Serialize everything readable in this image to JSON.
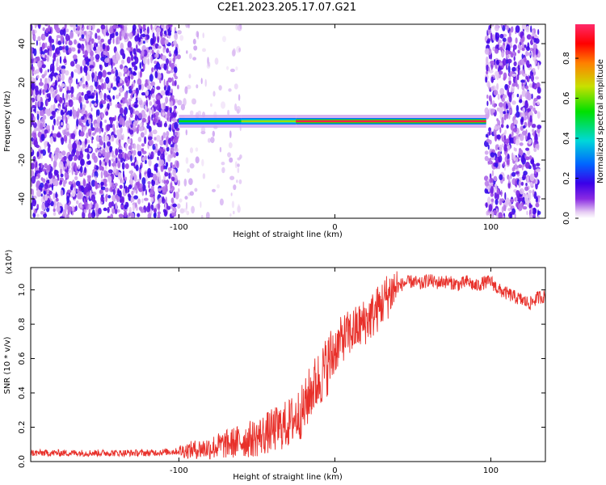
{
  "chart_data": [
    {
      "type": "heatmap",
      "title": "C2E1.2023.205.17.07.G21",
      "xlabel": "Height of straight line (km)",
      "ylabel": "Frequency (Hz)",
      "xlim": [
        -195,
        135
      ],
      "ylim": [
        -50,
        50
      ],
      "x_ticks": [
        -100,
        0,
        100
      ],
      "x_tick_labels": [
        "-100",
        "0",
        "100"
      ],
      "y_ticks": [
        -40,
        -20,
        0,
        20,
        40
      ],
      "y_tick_labels": [
        "-40",
        "-20",
        "0",
        "20",
        "40"
      ],
      "colorbar": {
        "label": "Normalized spectral amplitude",
        "range": [
          0,
          0.97
        ],
        "ticks": [
          0.0,
          0.2,
          0.4,
          0.6,
          0.8
        ],
        "tick_labels": [
          "0.0",
          "0.2",
          "0.4",
          "0.6",
          "0.8"
        ],
        "colors": [
          "#ffffff",
          "#e8d0f4",
          "#8a2be2",
          "#3a00e8",
          "#0066ff",
          "#00d8d8",
          "#00e000",
          "#c8e000",
          "#ff8000",
          "#ff0000",
          "#ff2a6a"
        ]
      },
      "noise_regions": [
        {
          "x_from": -195,
          "x_to": -100,
          "level": "dense"
        },
        {
          "x_from": -100,
          "x_to": -60,
          "level": "sparse"
        },
        {
          "x_from": 97,
          "x_to": 131,
          "level": "dense"
        }
      ],
      "signal_band": {
        "center_frequency_hz": 0,
        "segments": [
          {
            "x_from": -100,
            "x_to": -60,
            "peak": 0.55
          },
          {
            "x_from": -60,
            "x_to": -25,
            "peak": 0.65
          },
          {
            "x_from": -25,
            "x_to": 97,
            "peak": 0.97
          }
        ]
      },
      "grid": false
    },
    {
      "type": "line",
      "xlabel": "Height of straight line (km)",
      "ylabel": "SNR (10 * v/v)",
      "y_multiplier_label": "(x10⁴)",
      "xlim": [
        -195,
        135
      ],
      "ylim": [
        0,
        1.13
      ],
      "x_ticks": [
        -100,
        0,
        100
      ],
      "x_tick_labels": [
        "-100",
        "0",
        "100"
      ],
      "y_ticks": [
        0.0,
        0.2,
        0.4,
        0.6,
        0.8,
        1.0
      ],
      "y_tick_labels": [
        "0.0",
        "0.2",
        "0.4",
        "0.6",
        "0.8",
        "1.0"
      ],
      "series": [
        {
          "color": "#e8302a",
          "x": [
            -195,
            -180,
            -160,
            -140,
            -120,
            -100,
            -90,
            -80,
            -70,
            -60,
            -50,
            -40,
            -30,
            -25,
            -20,
            -15,
            -10,
            -5,
            0,
            5,
            10,
            15,
            20,
            25,
            30,
            35,
            40,
            45,
            50,
            55,
            60,
            65,
            70,
            75,
            80,
            85,
            90,
            95,
            100,
            105,
            110,
            115,
            120,
            125,
            131
          ],
          "y": [
            0.05,
            0.05,
            0.05,
            0.05,
            0.05,
            0.06,
            0.07,
            0.08,
            0.1,
            0.12,
            0.14,
            0.18,
            0.22,
            0.26,
            0.3,
            0.42,
            0.48,
            0.56,
            0.65,
            0.72,
            0.75,
            0.78,
            0.82,
            0.86,
            0.92,
            0.98,
            1.02,
            1.04,
            1.05,
            1.03,
            1.06,
            1.04,
            1.05,
            1.04,
            1.03,
            1.05,
            1.02,
            1.04,
            1.05,
            1.0,
            0.98,
            0.96,
            0.94,
            0.92,
            0.96
          ]
        }
      ],
      "grid": false
    }
  ]
}
